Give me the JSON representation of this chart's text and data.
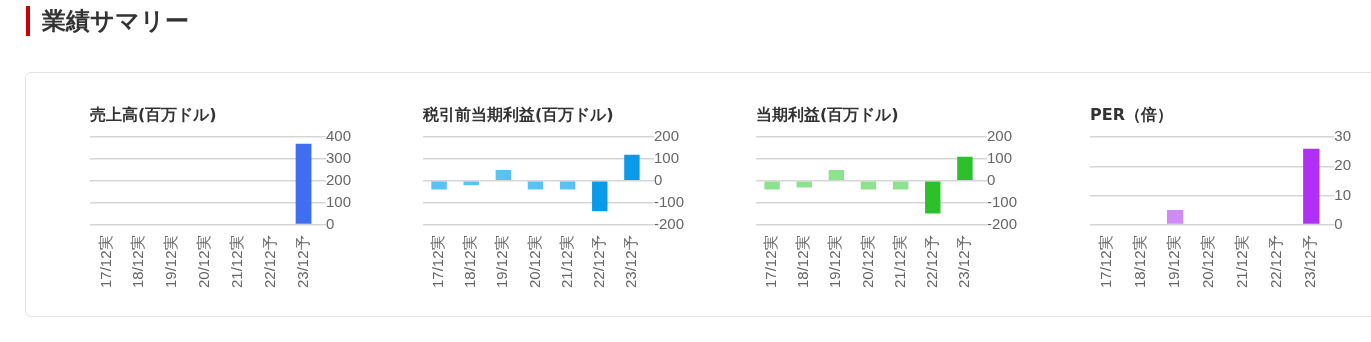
{
  "chart_data": [
    {
      "type": "bar",
      "title": "売上高(百万ドル)",
      "annotations": [
        "業績サマリー"
      ],
      "categories": [
        "17/12実",
        "18/12実",
        "19/12実",
        "20/12実",
        "21/12実",
        "22/12予",
        "23/12予"
      ],
      "values": [
        null,
        null,
        null,
        null,
        null,
        null,
        370
      ],
      "colors": [
        "#7fa0f5",
        "#7fa0f5",
        "#7fa0f5",
        "#7fa0f5",
        "#7fa0f5",
        "#3f6ff0",
        "#3f6ff0"
      ],
      "ylim": [
        0,
        400
      ],
      "yticks": [
        0,
        100,
        200,
        300,
        400
      ],
      "grid": "y"
    },
    {
      "type": "bar",
      "title": "税引前当期利益(百万ドル)",
      "categories": [
        "17/12実",
        "18/12実",
        "19/12実",
        "20/12実",
        "21/12実",
        "22/12予",
        "23/12予"
      ],
      "values": [
        -40,
        -20,
        50,
        -40,
        -40,
        -140,
        120
      ],
      "colors": [
        "#5bc0f5",
        "#5bc0f5",
        "#5bc0f5",
        "#5bc0f5",
        "#5bc0f5",
        "#0a9be8",
        "#0a9be8"
      ],
      "ylim": [
        -200,
        200
      ],
      "yticks": [
        -200,
        -100,
        0,
        100,
        200
      ],
      "grid": "y"
    },
    {
      "type": "bar",
      "title": "当期利益(百万ドル)",
      "categories": [
        "17/12実",
        "18/12実",
        "19/12実",
        "20/12実",
        "21/12実",
        "22/12予",
        "23/12予"
      ],
      "values": [
        -40,
        -30,
        50,
        -40,
        -40,
        -150,
        110
      ],
      "colors": [
        "#8de38d",
        "#8de38d",
        "#8de38d",
        "#8de38d",
        "#8de38d",
        "#2cc12c",
        "#2cc12c"
      ],
      "ylim": [
        -200,
        200
      ],
      "yticks": [
        -200,
        -100,
        0,
        100,
        200
      ],
      "grid": "y"
    },
    {
      "type": "bar",
      "title": "PER（倍）",
      "categories": [
        "17/12実",
        "18/12実",
        "19/12実",
        "20/12実",
        "21/12実",
        "22/12予",
        "23/12予"
      ],
      "values": [
        null,
        null,
        5,
        null,
        null,
        null,
        26
      ],
      "colors": [
        "#d08af5",
        "#d08af5",
        "#d08af5",
        "#d08af5",
        "#d08af5",
        "#b030f5",
        "#b030f5"
      ],
      "ylim": [
        0,
        30
      ],
      "yticks": [
        0,
        10,
        20,
        30
      ],
      "grid": "y"
    }
  ]
}
